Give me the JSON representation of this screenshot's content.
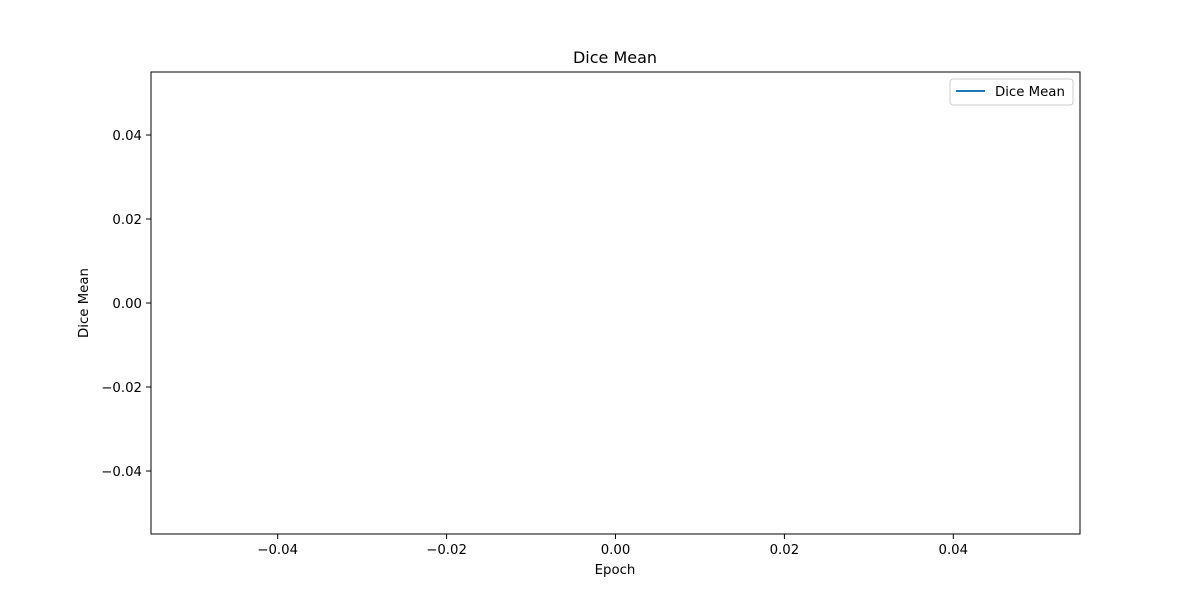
{
  "chart_data": {
    "type": "line",
    "title": "Dice Mean",
    "xlabel": "Epoch",
    "ylabel": "Dice Mean",
    "xlim": [
      -0.055,
      0.055
    ],
    "ylim": [
      -0.055,
      0.055
    ],
    "x_ticks": [
      -0.04,
      -0.02,
      0.0,
      0.02,
      0.04
    ],
    "x_tick_labels": [
      "−0.04",
      "−0.02",
      "0.00",
      "0.02",
      "0.04"
    ],
    "y_ticks": [
      0.04,
      0.02,
      0.0,
      -0.02,
      -0.04
    ],
    "y_tick_labels": [
      "0.04",
      "0.02",
      "0.00",
      "−0.02",
      "−0.04"
    ],
    "grid": false,
    "legend_position": "top-right",
    "series": [
      {
        "name": "Dice Mean",
        "color": "#1f77b4",
        "x": [],
        "y": []
      }
    ]
  }
}
